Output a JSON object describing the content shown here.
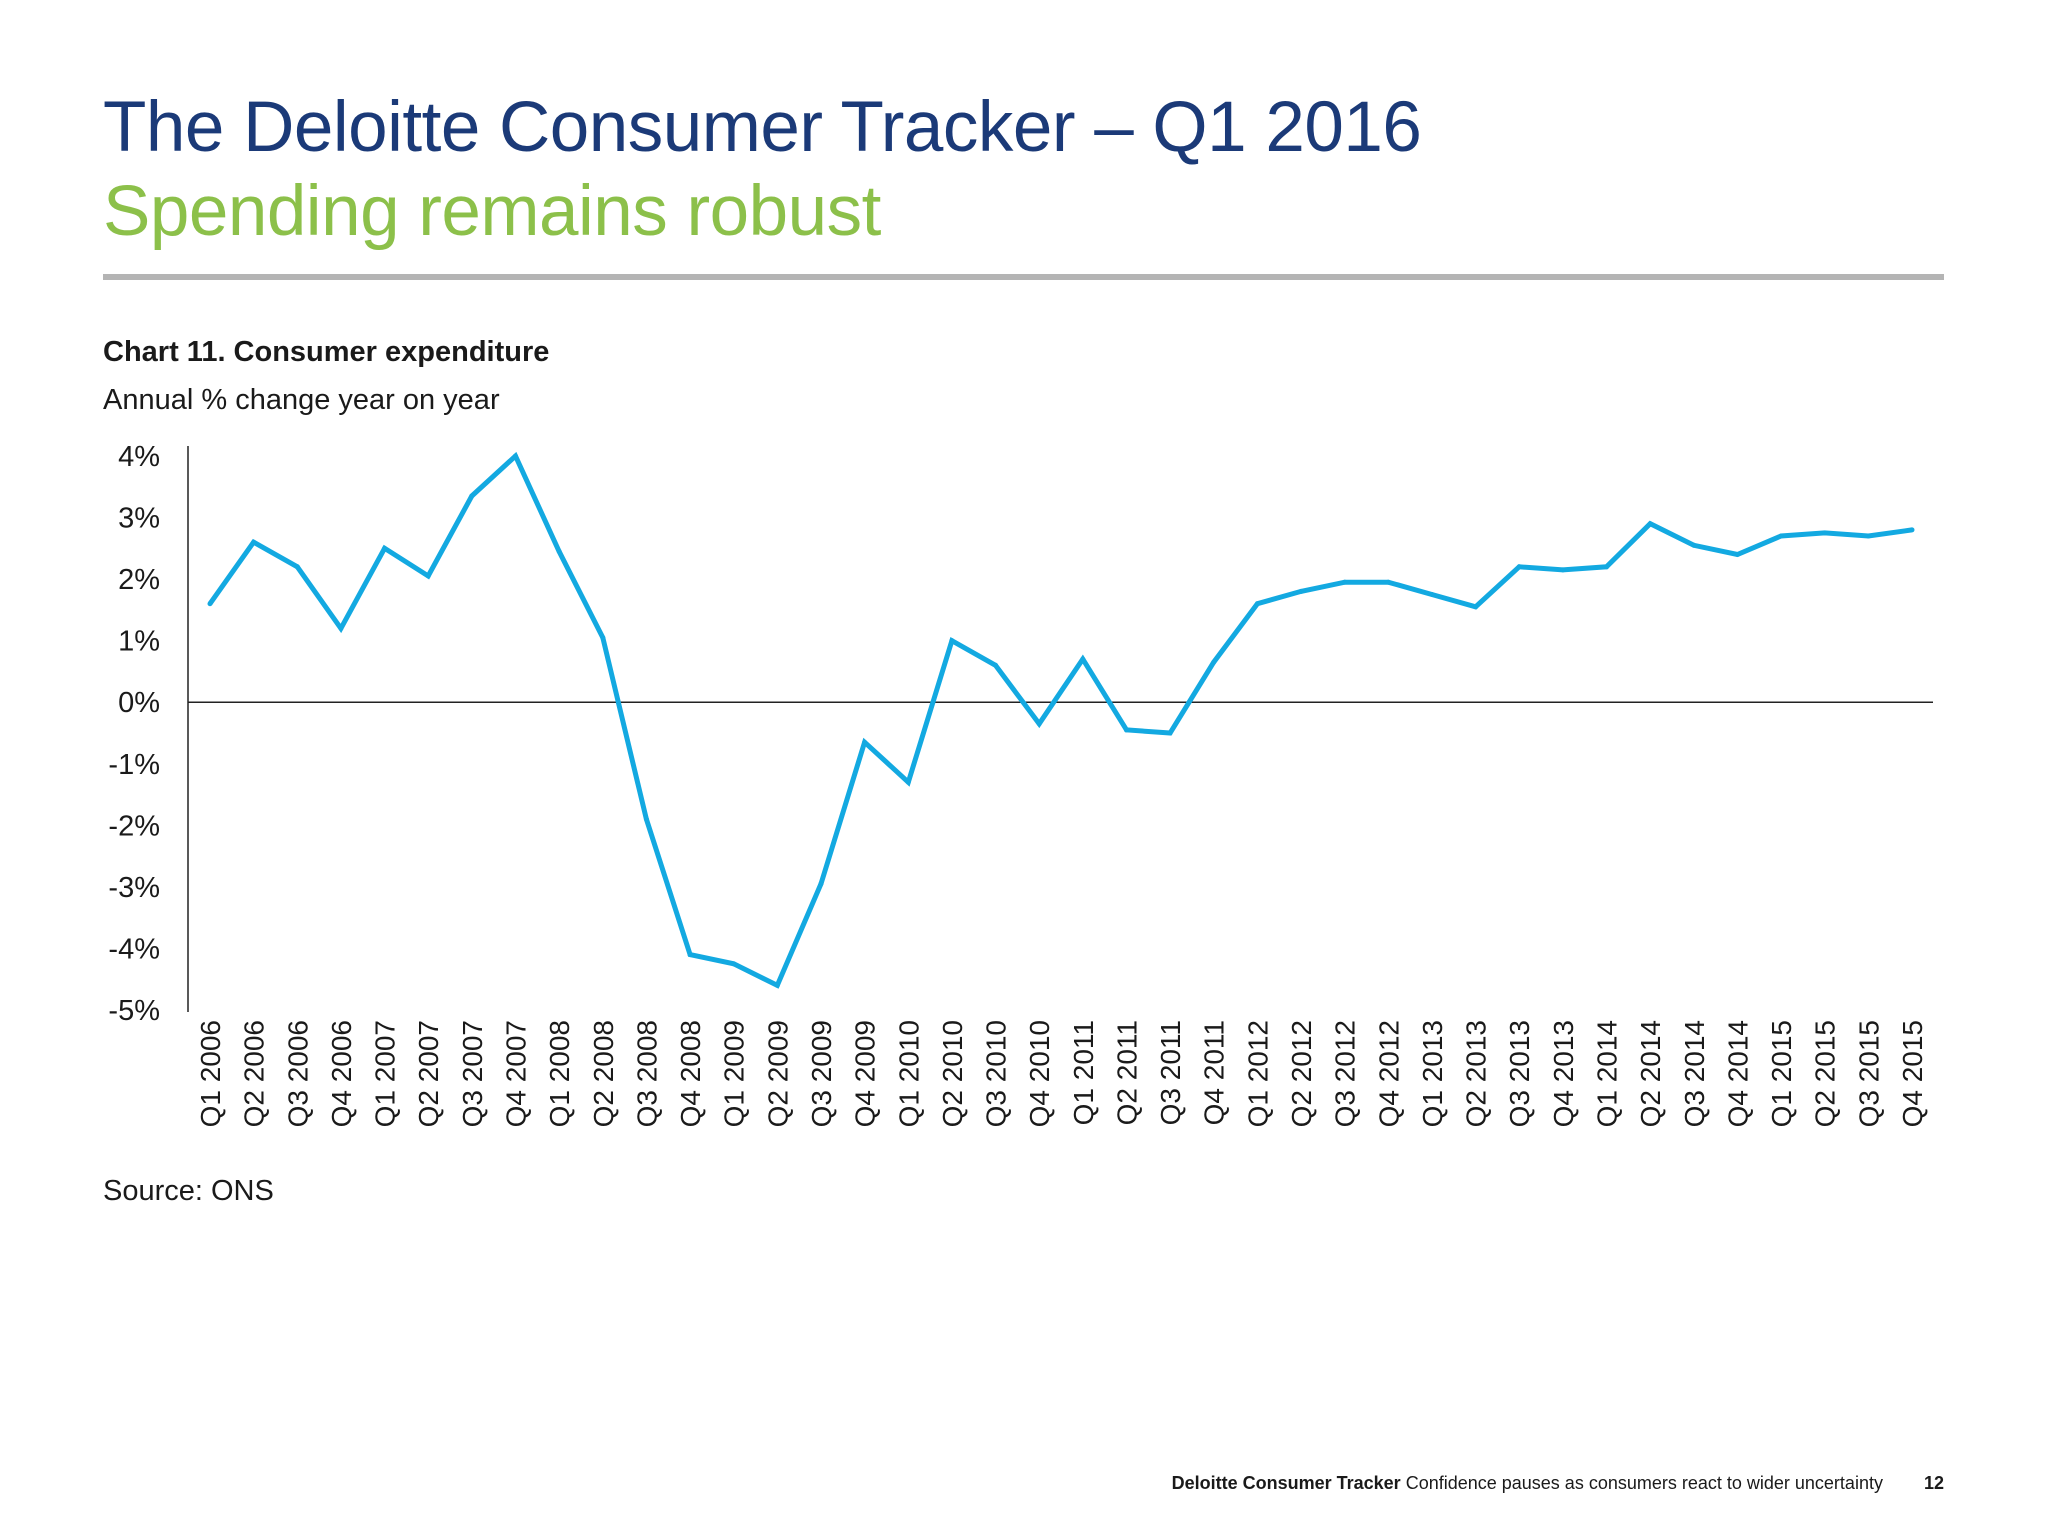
{
  "header": {
    "title": "The Deloitte Consumer Tracker – Q1 2016",
    "subtitle": "Spending remains robust"
  },
  "colors": {
    "title": "#1b3a78",
    "subtitle": "#8cc04a",
    "line": "#13a9e1",
    "rule": "#b4b4b4"
  },
  "chart_data": {
    "type": "line",
    "title": "Chart 11. Consumer expenditure",
    "subtitle": "Annual % change year on year",
    "xlabel": "",
    "ylabel": "",
    "ylim": [
      -5,
      4
    ],
    "yticks": [
      "4%",
      "3%",
      "2%",
      "1%",
      "0%",
      "-1%",
      "-2%",
      "-3%",
      "-4%",
      "-5%"
    ],
    "grid": false,
    "categories": [
      "Q1 2006",
      "Q2 2006",
      "Q3 2006",
      "Q4 2006",
      "Q1 2007",
      "Q2 2007",
      "Q3 2007",
      "Q4 2007",
      "Q1 2008",
      "Q2 2008",
      "Q3 2008",
      "Q4 2008",
      "Q1 2009",
      "Q2 2009",
      "Q3 2009",
      "Q4 2009",
      "Q1 2010",
      "Q2 2010",
      "Q3 2010",
      "Q4 2010",
      "Q1 2011",
      "Q2 2011",
      "Q3 2011",
      "Q4 2011",
      "Q1 2012",
      "Q2 2012",
      "Q3 2012",
      "Q4 2012",
      "Q1 2013",
      "Q2 2013",
      "Q3 2013",
      "Q4 2013",
      "Q1 2014",
      "Q2 2014",
      "Q3 2014",
      "Q4 2014",
      "Q1 2015",
      "Q2 2015",
      "Q3 2015",
      "Q4 2015"
    ],
    "series": [
      {
        "values": [
          1.6,
          2.6,
          2.2,
          1.2,
          2.5,
          2.05,
          3.35,
          4.0,
          2.45,
          1.05,
          -1.9,
          -4.1,
          -4.25,
          -4.6,
          -2.95,
          -0.65,
          -1.3,
          1.0,
          0.6,
          -0.35,
          0.7,
          -0.45,
          -0.5,
          0.65,
          1.6,
          1.8,
          1.95,
          1.95,
          1.75,
          1.55,
          2.2,
          2.15,
          2.2,
          2.9,
          2.55,
          2.4,
          2.7,
          2.75,
          2.7,
          2.8
        ]
      }
    ]
  },
  "source": "Source: ONS",
  "footer": {
    "brand": "Deloitte Consumer Tracker",
    "text": "Confidence pauses as consumers react to wider uncertainty",
    "page": "12"
  }
}
